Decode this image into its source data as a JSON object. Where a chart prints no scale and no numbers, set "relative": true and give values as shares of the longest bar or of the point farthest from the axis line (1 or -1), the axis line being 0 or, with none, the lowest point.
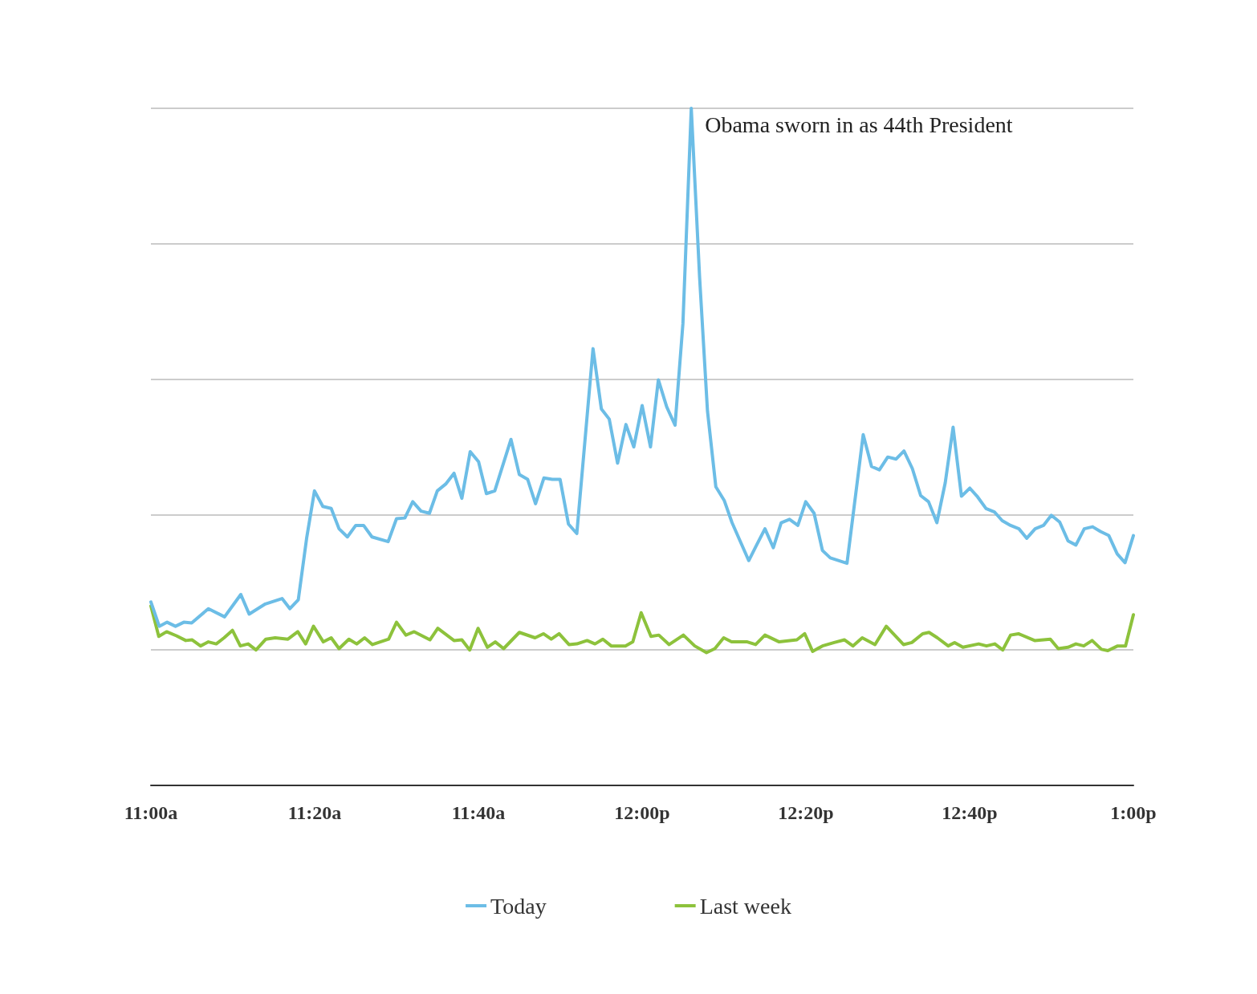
{
  "chart_data": {
    "type": "line",
    "relative": true,
    "grid": "y",
    "legend": "bottom",
    "marker": "none",
    "line_style": "solid",
    "xlim": [
      11,
      13
    ],
    "xticks": [
      {
        "value": 11,
        "label": "11:00a"
      },
      {
        "value": 11.3333,
        "label": "11:20a"
      },
      {
        "value": 11.6667,
        "label": "11:40a"
      },
      {
        "value": 12,
        "label": "12:00p"
      },
      {
        "value": 12.3333,
        "label": "12:20p"
      },
      {
        "value": 12.6667,
        "label": "12:40p"
      },
      {
        "value": 13,
        "label": "1:00p"
      }
    ],
    "annotations": [
      {
        "text": "Obama sworn in as 44th President",
        "x": 12.1,
        "y": 1
      }
    ],
    "series": [
      {
        "name": "Today",
        "color": "#6cbde6",
        "x": [
          11,
          11.017,
          11.033,
          11.05,
          11.067,
          11.083,
          11.117,
          11.15,
          11.183,
          11.2,
          11.233,
          11.267,
          11.283,
          11.3,
          11.317,
          11.333,
          11.35,
          11.367,
          11.383,
          11.4,
          11.417,
          11.433,
          11.45,
          11.483,
          11.5,
          11.517,
          11.533,
          11.55,
          11.567,
          11.583,
          11.6,
          11.617,
          11.633,
          11.65,
          11.667,
          11.683,
          11.7,
          11.733,
          11.75,
          11.767,
          11.783,
          11.8,
          11.817,
          11.833,
          11.85,
          11.867,
          11.9,
          11.917,
          11.933,
          11.95,
          11.967,
          11.983,
          12,
          12.017,
          12.033,
          12.05,
          12.067,
          12.083,
          12.1,
          12.117,
          12.133,
          12.15,
          12.167,
          12.183,
          12.217,
          12.233,
          12.25,
          12.267,
          12.283,
          12.3,
          12.317,
          12.333,
          12.35,
          12.367,
          12.383,
          12.417,
          12.45,
          12.467,
          12.483,
          12.5,
          12.517,
          12.533,
          12.55,
          12.567,
          12.583,
          12.6,
          12.617,
          12.633,
          12.65,
          12.667,
          12.683,
          12.7,
          12.717,
          12.733,
          12.75,
          12.767,
          12.783,
          12.8,
          12.817,
          12.833,
          12.85,
          12.867,
          12.883,
          12.9,
          12.917,
          12.933,
          12.95,
          12.967,
          12.983,
          13
        ],
        "values": [
          0.271,
          0.235,
          0.241,
          0.235,
          0.241,
          0.24,
          0.261,
          0.249,
          0.282,
          0.253,
          0.268,
          0.276,
          0.261,
          0.274,
          0.365,
          0.435,
          0.412,
          0.409,
          0.379,
          0.367,
          0.384,
          0.384,
          0.367,
          0.36,
          0.394,
          0.395,
          0.419,
          0.405,
          0.402,
          0.435,
          0.445,
          0.461,
          0.424,
          0.493,
          0.478,
          0.431,
          0.435,
          0.511,
          0.459,
          0.452,
          0.416,
          0.454,
          0.452,
          0.452,
          0.386,
          0.372,
          0.645,
          0.556,
          0.541,
          0.476,
          0.533,
          0.5,
          0.561,
          0.5,
          0.599,
          0.559,
          0.532,
          0.682,
          1,
          0.75,
          0.553,
          0.441,
          0.421,
          0.388,
          0.332,
          0.355,
          0.379,
          0.351,
          0.388,
          0.393,
          0.384,
          0.419,
          0.402,
          0.347,
          0.336,
          0.328,
          0.518,
          0.471,
          0.466,
          0.485,
          0.482,
          0.494,
          0.468,
          0.428,
          0.419,
          0.388,
          0.447,
          0.529,
          0.427,
          0.439,
          0.426,
          0.409,
          0.404,
          0.391,
          0.384,
          0.379,
          0.365,
          0.379,
          0.384,
          0.399,
          0.389,
          0.361,
          0.355,
          0.379,
          0.382,
          0.375,
          0.369,
          0.342,
          0.329,
          0.369
        ]
      },
      {
        "name": "Last week",
        "color": "#8dc23c",
        "x": [
          11,
          11.016,
          11.032,
          11.052,
          11.071,
          11.084,
          11.101,
          11.117,
          11.133,
          11.149,
          11.166,
          11.182,
          11.198,
          11.214,
          11.234,
          11.253,
          11.279,
          11.299,
          11.315,
          11.331,
          11.351,
          11.367,
          11.383,
          11.403,
          11.419,
          11.435,
          11.451,
          11.484,
          11.5,
          11.519,
          11.536,
          11.568,
          11.584,
          11.617,
          11.633,
          11.649,
          11.666,
          11.685,
          11.701,
          11.718,
          11.75,
          11.782,
          11.799,
          11.815,
          11.831,
          11.851,
          11.867,
          11.888,
          11.904,
          11.92,
          11.937,
          11.966,
          11.981,
          11.998,
          12.018,
          12.034,
          12.055,
          12.084,
          12.107,
          12.131,
          12.148,
          12.166,
          12.182,
          12.214,
          12.231,
          12.25,
          12.279,
          12.315,
          12.331,
          12.347,
          12.367,
          12.391,
          12.412,
          12.429,
          12.448,
          12.474,
          12.497,
          12.532,
          12.549,
          12.571,
          12.584,
          12.601,
          12.623,
          12.636,
          12.653,
          12.685,
          12.701,
          12.718,
          12.734,
          12.75,
          12.766,
          12.799,
          12.831,
          12.847,
          12.867,
          12.883,
          12.899,
          12.916,
          12.935,
          12.948,
          12.968,
          12.984,
          13
        ],
        "values": [
          0.265,
          0.22,
          0.227,
          0.221,
          0.214,
          0.215,
          0.206,
          0.212,
          0.209,
          0.218,
          0.229,
          0.206,
          0.209,
          0.2,
          0.216,
          0.218,
          0.216,
          0.227,
          0.209,
          0.235,
          0.212,
          0.218,
          0.202,
          0.216,
          0.209,
          0.218,
          0.208,
          0.216,
          0.241,
          0.222,
          0.227,
          0.215,
          0.232,
          0.214,
          0.215,
          0.2,
          0.232,
          0.204,
          0.212,
          0.202,
          0.226,
          0.218,
          0.224,
          0.216,
          0.224,
          0.208,
          0.209,
          0.214,
          0.209,
          0.216,
          0.206,
          0.206,
          0.212,
          0.255,
          0.22,
          0.222,
          0.208,
          0.222,
          0.206,
          0.196,
          0.202,
          0.218,
          0.212,
          0.212,
          0.208,
          0.222,
          0.212,
          0.215,
          0.224,
          0.198,
          0.206,
          0.211,
          0.215,
          0.206,
          0.218,
          0.208,
          0.235,
          0.208,
          0.211,
          0.224,
          0.226,
          0.218,
          0.206,
          0.211,
          0.204,
          0.209,
          0.206,
          0.209,
          0.2,
          0.222,
          0.224,
          0.214,
          0.216,
          0.202,
          0.204,
          0.209,
          0.206,
          0.214,
          0.201,
          0.199,
          0.206,
          0.206,
          0.252
        ]
      }
    ]
  }
}
